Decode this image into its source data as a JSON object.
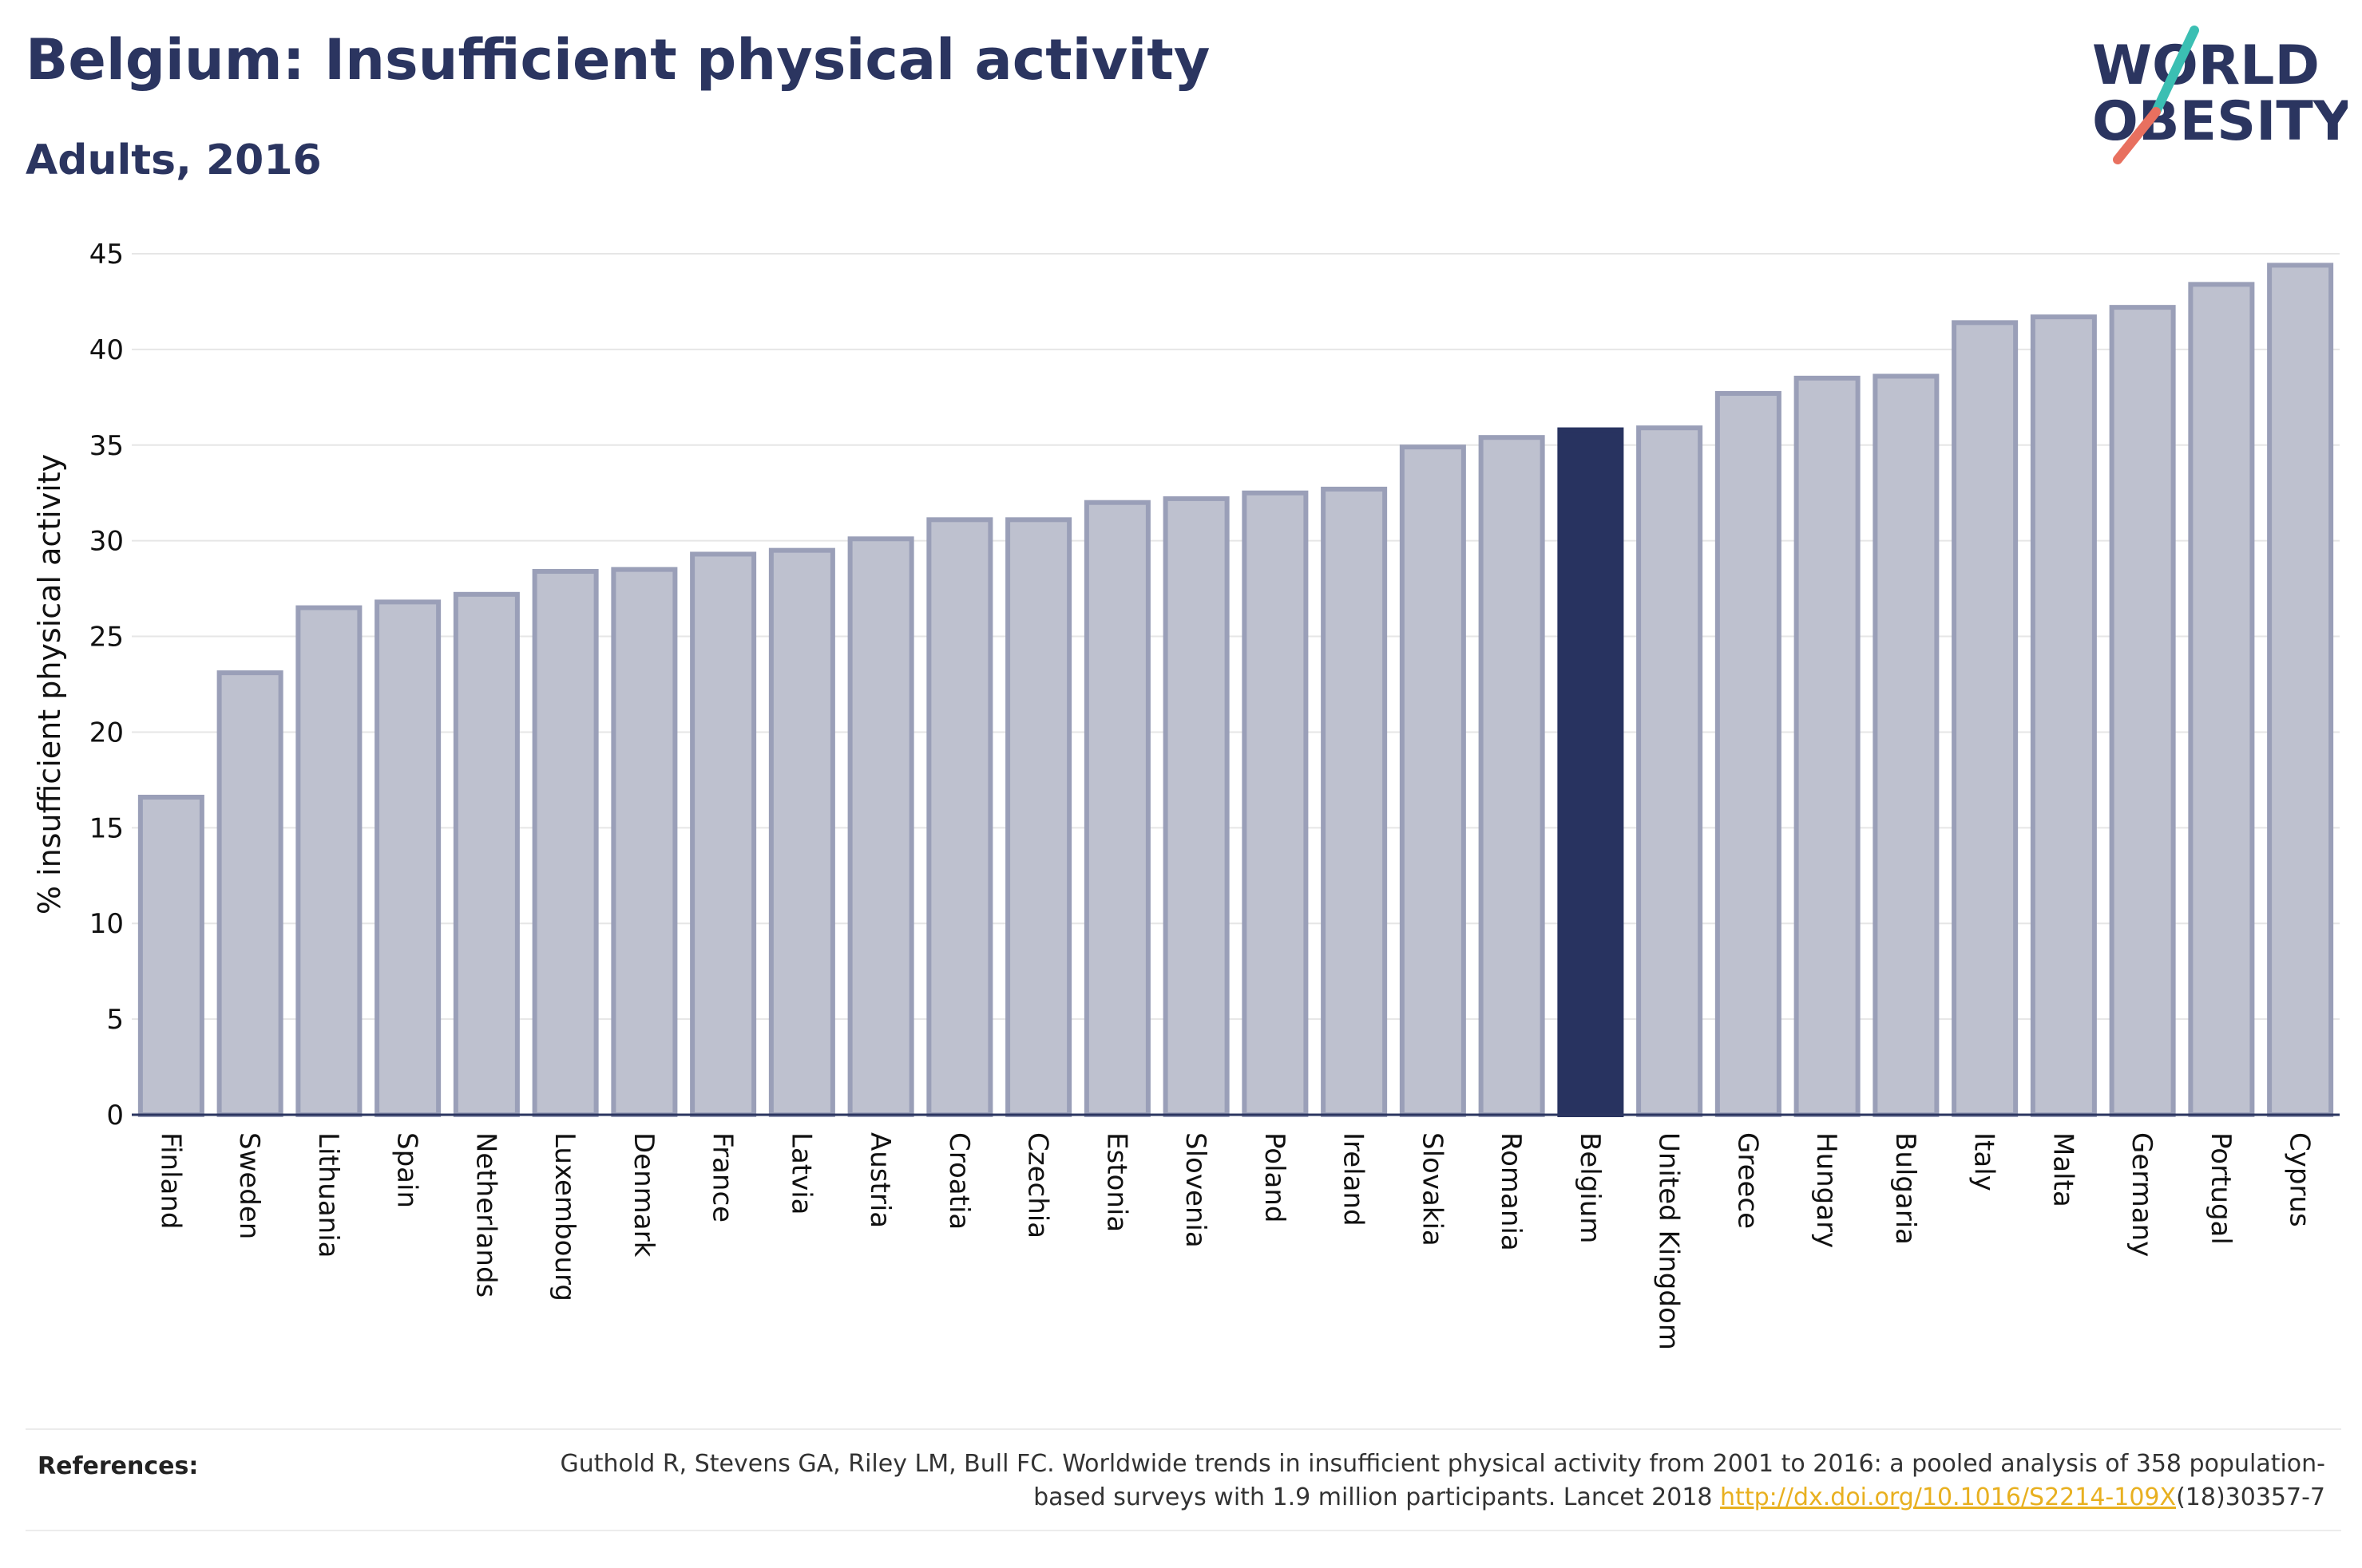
{
  "header": {
    "title": "Belgium: Insufficient physical activity",
    "subtitle": "Adults, 2016"
  },
  "logo": {
    "line1": "WORLD",
    "line2": "OBESITY",
    "colors": {
      "text": "#2b3560",
      "slash_teal": "#3bbfb3",
      "slash_coral": "#e8705f"
    }
  },
  "chart_data": {
    "type": "bar",
    "ylabel": "% insufficient physical activity",
    "xlabel": "",
    "ylim": [
      0,
      45
    ],
    "yticks": [
      0,
      5,
      10,
      15,
      20,
      25,
      30,
      35,
      40,
      45
    ],
    "grid": true,
    "categories": [
      "Finland",
      "Sweden",
      "Lithuania",
      "Spain",
      "Netherlands",
      "Luxembourg",
      "Denmark",
      "France",
      "Latvia",
      "Austria",
      "Croatia",
      "Czechia",
      "Estonia",
      "Slovenia",
      "Poland",
      "Ireland",
      "Slovakia",
      "Romania",
      "Belgium",
      "United Kingdom",
      "Greece",
      "Hungary",
      "Bulgaria",
      "Italy",
      "Malta",
      "Germany",
      "Portugal",
      "Cyprus"
    ],
    "values": [
      16.6,
      23.1,
      26.5,
      26.8,
      27.2,
      28.4,
      28.5,
      29.3,
      29.5,
      30.1,
      31.1,
      31.1,
      32.0,
      32.2,
      32.5,
      32.7,
      34.9,
      35.4,
      35.8,
      35.9,
      37.7,
      38.5,
      38.6,
      41.4,
      41.7,
      42.2,
      43.4,
      44.4
    ],
    "highlight": "Belgium",
    "colors": {
      "bar": "#bec1cf",
      "bar_border": "#9a9fb8",
      "highlight": "#283360",
      "grid": "#e6e6e6",
      "axis": "#2b3560"
    }
  },
  "references": {
    "label": "References:",
    "text_before": "Guthold R, Stevens GA, Riley LM, Bull FC. Worldwide trends in insufficient physical activity from 2001 to 2016: a pooled analysis of 358 population-based surveys with 1.9 million participants. Lancet 2018 ",
    "link": "http://dx.doi.org/10.1016/S2214-109X",
    "text_after": "(18)30357-7"
  }
}
